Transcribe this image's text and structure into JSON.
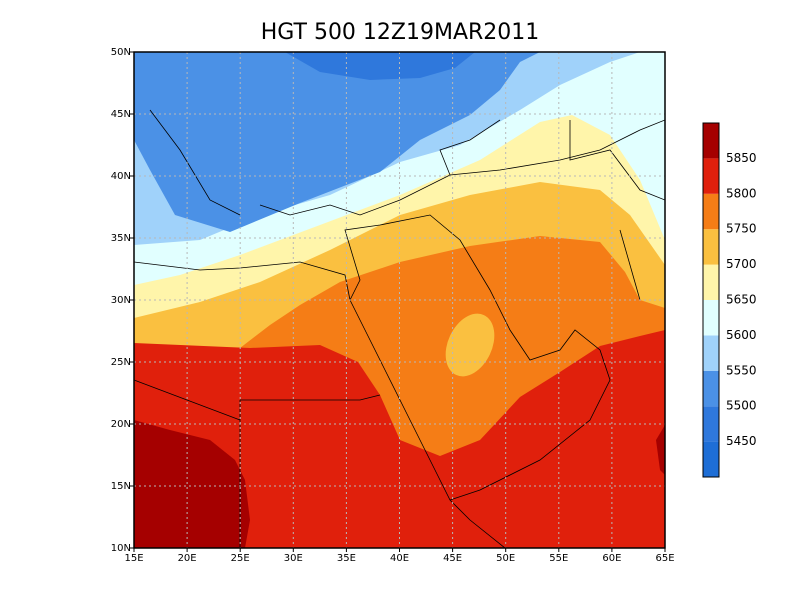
{
  "map": {
    "title": "HGT 500 12Z19MAR2011",
    "xlim": [
      15,
      65
    ],
    "ylim": [
      10,
      50
    ],
    "xticks": [
      {
        "value": 15,
        "label": "15E"
      },
      {
        "value": 20,
        "label": "20E"
      },
      {
        "value": 25,
        "label": "25E"
      },
      {
        "value": 30,
        "label": "30E"
      },
      {
        "value": 35,
        "label": "35E"
      },
      {
        "value": 40,
        "label": "40E"
      },
      {
        "value": 45,
        "label": "45E"
      },
      {
        "value": 50,
        "label": "50E"
      },
      {
        "value": 55,
        "label": "55E"
      },
      {
        "value": 60,
        "label": "60E"
      },
      {
        "value": 65,
        "label": "65E"
      }
    ],
    "yticks": [
      {
        "value": 10,
        "label": "10N"
      },
      {
        "value": 15,
        "label": "15N"
      },
      {
        "value": 20,
        "label": "20N"
      },
      {
        "value": 25,
        "label": "25N"
      },
      {
        "value": 30,
        "label": "30N"
      },
      {
        "value": 35,
        "label": "35N"
      },
      {
        "value": 40,
        "label": "40N"
      },
      {
        "value": 45,
        "label": "45N"
      },
      {
        "value": 50,
        "label": "50N"
      }
    ],
    "grid": true
  },
  "colorbar": {
    "levels": [
      5450,
      5500,
      5550,
      5600,
      5650,
      5700,
      5750,
      5800,
      5850
    ],
    "colors": [
      "#1e6ed6",
      "#2f78dc",
      "#4b91e6",
      "#a0d2fa",
      "#e1ffff",
      "#fff5aa",
      "#fac040",
      "#f57d16",
      "#e0200c",
      "#a50000"
    ]
  }
}
